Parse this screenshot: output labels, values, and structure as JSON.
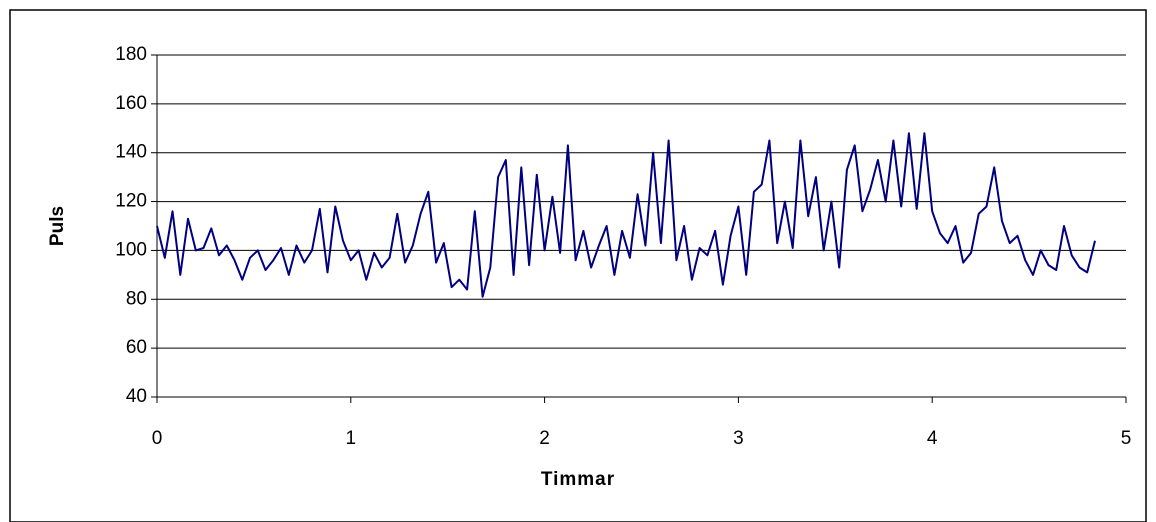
{
  "chart_data": {
    "type": "line",
    "x_label": "Timmar",
    "y_label": "Puls",
    "xlim": [
      0,
      5
    ],
    "xticks": [
      0,
      1,
      2,
      3,
      4,
      5
    ],
    "ylim": [
      40,
      180
    ],
    "yticks": [
      40,
      60,
      80,
      100,
      120,
      140,
      160,
      180
    ],
    "grid": true,
    "x": [
      0,
      0.04,
      0.08,
      0.12,
      0.16,
      0.2,
      0.24,
      0.28,
      0.32,
      0.36,
      0.4,
      0.44,
      0.48,
      0.52,
      0.56,
      0.6,
      0.64,
      0.68,
      0.72,
      0.76,
      0.8,
      0.84,
      0.88,
      0.92,
      0.96,
      1,
      1.04,
      1.08,
      1.12,
      1.16,
      1.2,
      1.24,
      1.28,
      1.32,
      1.36,
      1.4,
      1.44,
      1.48,
      1.52,
      1.56,
      1.6,
      1.64,
      1.68,
      1.72,
      1.76,
      1.8,
      1.84,
      1.88,
      1.92,
      1.96,
      2,
      2.04,
      2.08,
      2.12,
      2.16,
      2.2,
      2.24,
      2.28,
      2.32,
      2.36,
      2.4,
      2.44,
      2.48,
      2.52,
      2.56,
      2.6,
      2.64,
      2.68,
      2.72,
      2.76,
      2.8,
      2.84,
      2.88,
      2.92,
      2.96,
      3,
      3.04,
      3.08,
      3.12,
      3.16,
      3.2,
      3.24,
      3.28,
      3.32,
      3.36,
      3.4,
      3.44,
      3.48,
      3.52,
      3.56,
      3.6,
      3.64,
      3.68,
      3.72,
      3.76,
      3.8,
      3.84,
      3.88,
      3.92,
      3.96,
      4,
      4.04,
      4.08,
      4.12,
      4.16,
      4.2,
      4.24,
      4.28,
      4.32,
      4.36,
      4.4,
      4.44,
      4.48,
      4.52,
      4.56,
      4.6,
      4.64,
      4.68,
      4.72,
      4.76,
      4.8,
      4.84
    ],
    "series": [
      {
        "color": "#000080",
        "values": [
          110,
          97,
          116,
          90,
          113,
          100,
          101,
          109,
          98,
          102,
          96,
          88,
          97,
          100,
          92,
          96,
          101,
          90,
          102,
          95,
          100,
          117,
          91,
          118,
          104,
          96,
          100,
          88,
          99,
          93,
          97,
          115,
          95,
          102,
          115,
          124,
          95,
          103,
          85,
          88,
          84,
          116,
          81,
          93,
          130,
          137,
          90,
          134,
          94,
          131,
          100,
          122,
          99,
          143,
          96,
          108,
          93,
          102,
          110,
          90,
          108,
          97,
          123,
          102,
          140,
          103,
          145,
          96,
          110,
          88,
          101,
          98,
          108,
          86,
          106,
          118,
          90,
          124,
          127,
          145,
          103,
          120,
          101,
          145,
          114,
          130,
          100,
          120,
          93,
          133,
          143,
          116,
          125,
          137,
          120,
          145,
          118,
          148,
          117,
          148,
          116,
          107,
          103,
          110,
          95,
          99,
          115,
          118,
          134,
          112,
          103,
          106,
          96,
          90,
          100,
          94,
          92,
          110,
          98,
          93,
          91,
          104
        ]
      }
    ]
  }
}
